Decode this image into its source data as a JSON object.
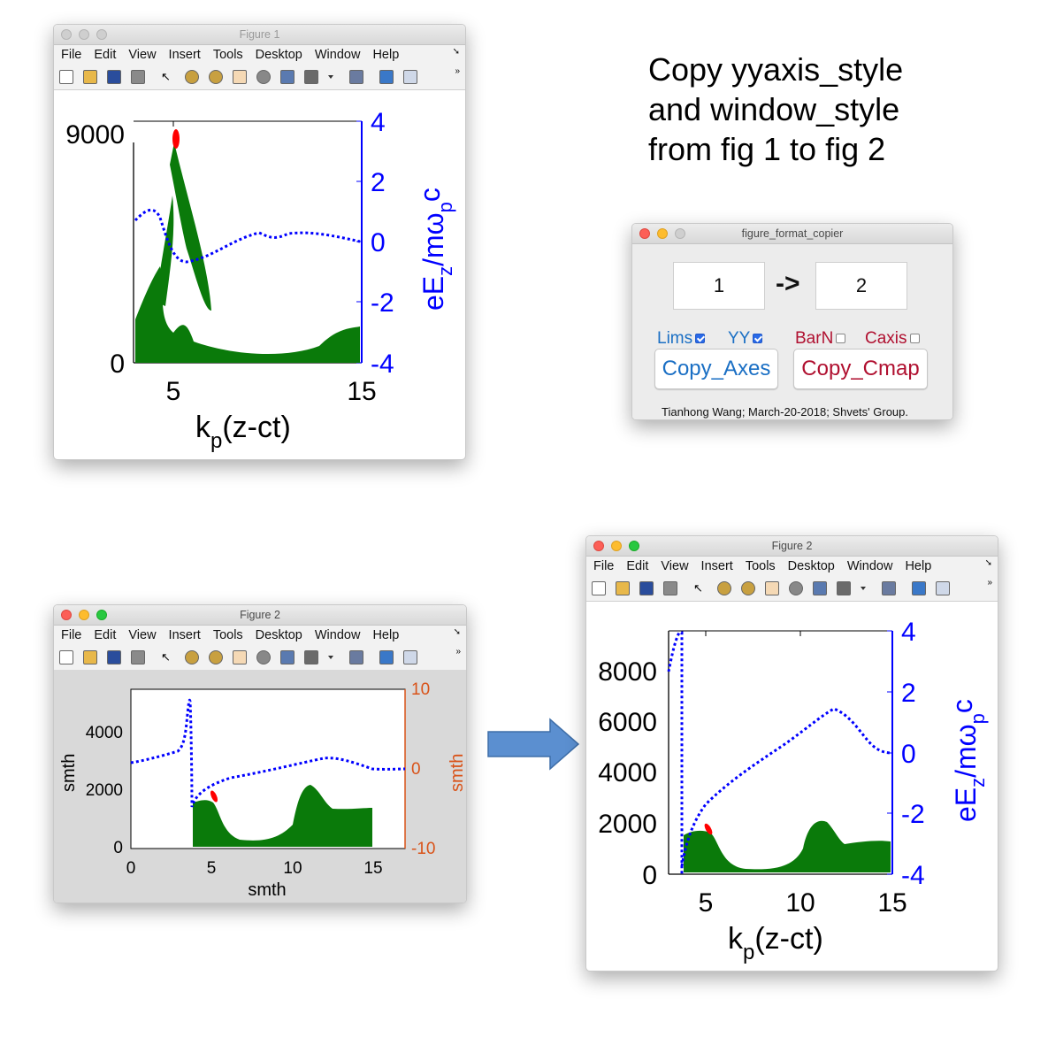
{
  "instruction": {
    "line1": "Copy yyaxis_style",
    "line2": "and window_style",
    "line3": "from fig 1 to fig 2"
  },
  "menu": [
    "File",
    "Edit",
    "View",
    "Insert",
    "Tools",
    "Desktop",
    "Window",
    "Help"
  ],
  "menu_more": "➘",
  "toolbar_more": "»",
  "toolbar_icons": [
    "new-figure-icon",
    "open-file-icon",
    "save-icon",
    "print-icon",
    "pointer-icon",
    "zoom-in-icon",
    "zoom-out-icon",
    "pan-icon",
    "rotate-3d-icon",
    "data-cursor-icon",
    "brush-icon",
    "brush-dropdown-icon",
    "link-plot-icon",
    "colorbar-icon",
    "legend-icon"
  ],
  "fig1": {
    "title": "Figure 1",
    "left_axis": {
      "ticks": [
        "9000",
        "0"
      ],
      "color": "#000000"
    },
    "right_axis": {
      "ticks": [
        "4",
        "2",
        "0",
        "-2",
        "-4"
      ],
      "color": "#0000ff",
      "label_main": "eE",
      "label_sub1": "z",
      "label_mid": "/mω",
      "label_sub2": "p",
      "label_end": "c"
    },
    "x_axis": {
      "ticks": [
        "5",
        "15"
      ],
      "label_main": "k",
      "label_sub": "p",
      "label_end": "(z-ct)"
    }
  },
  "copier": {
    "title": "figure_format_copier",
    "from_value": "1",
    "arrow": "->",
    "to_value": "2",
    "checks": [
      {
        "label": "Lims",
        "checked": true,
        "color": "#1a6fc4"
      },
      {
        "label": "YY",
        "checked": true,
        "color": "#1a6fc4"
      },
      {
        "label": "BarN",
        "checked": false,
        "color": "#b01030"
      },
      {
        "label": "Caxis",
        "checked": false,
        "color": "#b01030"
      }
    ],
    "copy_axes_label": "Copy_Axes",
    "copy_cmap_label": "Copy_Cmap",
    "credits": "Tianhong Wang; March-20-2018; Shvets' Group."
  },
  "fig2_before": {
    "title": "Figure 2",
    "left_axis": {
      "ticks": [
        "4000",
        "2000",
        "0"
      ],
      "label": "smth",
      "color": "#000000"
    },
    "right_axis": {
      "ticks": [
        "10",
        "0",
        "-10"
      ],
      "label": "smth",
      "color": "#d95319"
    },
    "x_axis": {
      "ticks": [
        "0",
        "5",
        "10",
        "15"
      ],
      "label": "smth"
    }
  },
  "fig2_after": {
    "title": "Figure 2",
    "left_axis": {
      "ticks": [
        "8000",
        "6000",
        "4000",
        "2000",
        "0"
      ],
      "color": "#000000"
    },
    "right_axis": {
      "ticks": [
        "4",
        "2",
        "0",
        "-2",
        "-4"
      ],
      "color": "#0000ff",
      "label_main": "eE",
      "label_sub1": "z",
      "label_mid": "/mω",
      "label_sub2": "p",
      "label_end": "c"
    },
    "x_axis": {
      "ticks": [
        "5",
        "10",
        "15"
      ],
      "label_main": "k",
      "label_sub": "p",
      "label_end": "(z-ct)"
    }
  },
  "colors": {
    "scatter_green": "#0a7a0a",
    "line_blue": "#0000ff",
    "highlight_red": "#ff0000",
    "arrow_blue": "#5b8fd0"
  }
}
